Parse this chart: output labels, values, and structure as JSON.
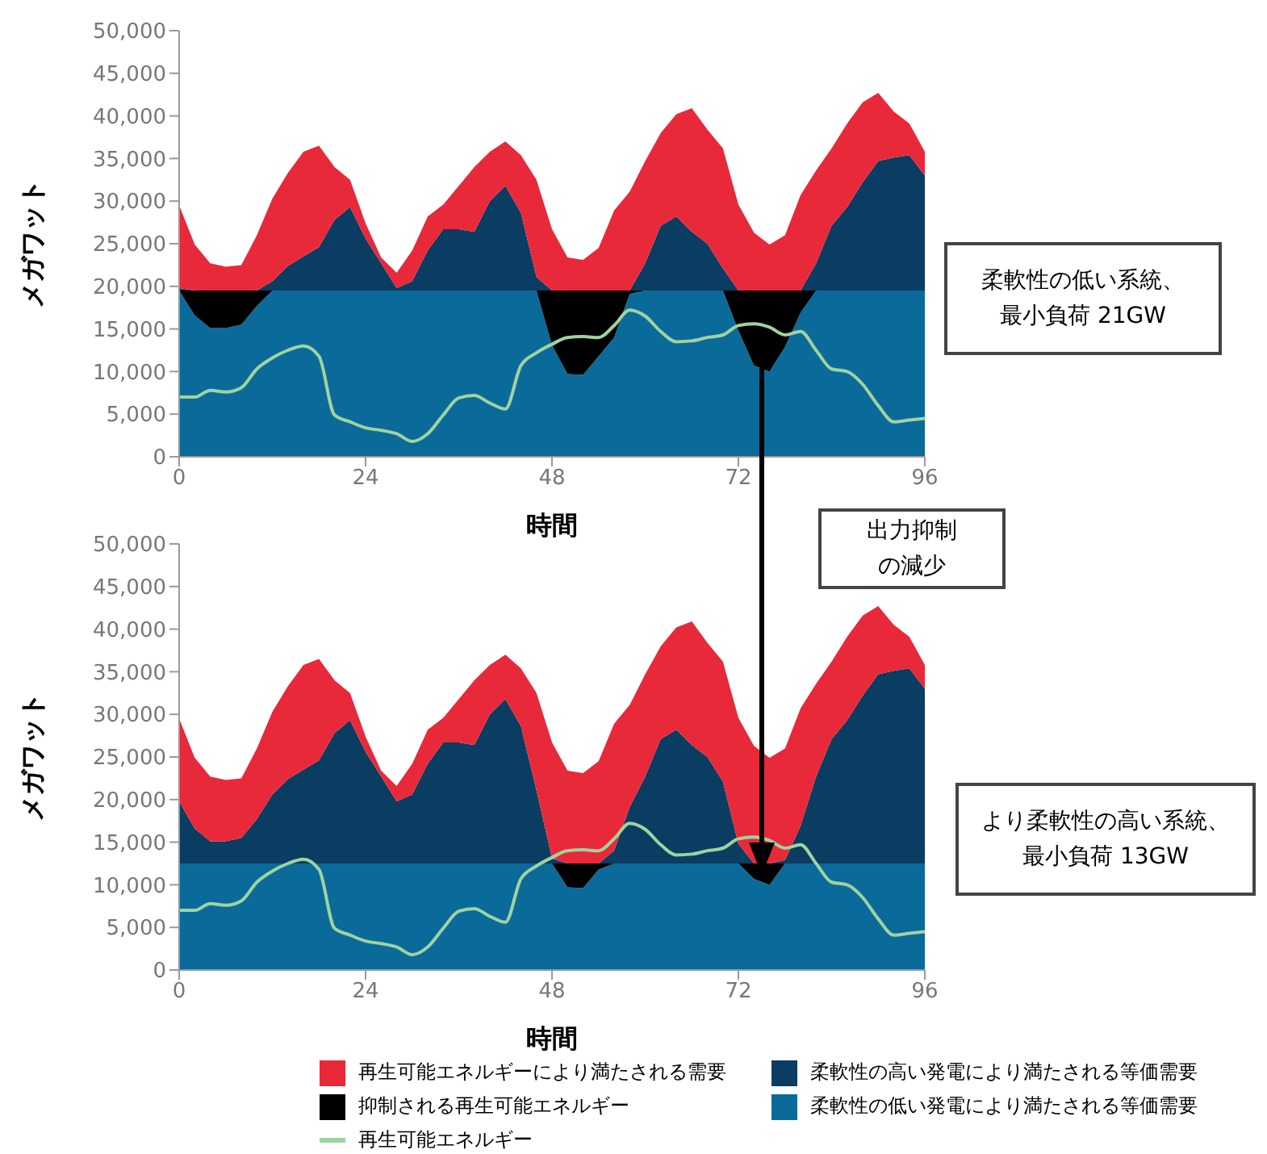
{
  "chart_data": [
    {
      "type": "area",
      "stacked": true,
      "xlabel": "時間",
      "ylabel": "メガワット",
      "x": [
        0,
        2,
        4,
        6,
        8,
        10,
        12,
        14,
        16,
        18,
        20,
        22,
        24,
        26,
        28,
        30,
        32,
        34,
        36,
        38,
        40,
        42,
        44,
        46,
        48,
        50,
        52,
        54,
        56,
        58,
        60,
        62,
        64,
        66,
        68,
        70,
        72,
        74,
        76,
        78,
        80,
        82,
        84,
        86,
        88,
        90,
        92,
        94,
        96
      ],
      "xlim": [
        0,
        96
      ],
      "xticks": [
        0,
        24,
        48,
        72,
        96
      ],
      "ylim": [
        0,
        50000
      ],
      "yticks": [
        0,
        {
          "value": 5000,
          "label": "5,000"
        },
        {
          "value": 10000,
          "label": "10,000"
        },
        {
          "value": 15000,
          "label": "15,000"
        },
        {
          "value": 20000,
          "label": "20,000"
        },
        {
          "value": 25000,
          "label": "25,000"
        },
        {
          "value": 30000,
          "label": "30,000"
        },
        {
          "value": 35000,
          "label": "35,000"
        },
        {
          "value": 40000,
          "label": "40,000"
        },
        {
          "value": 45000,
          "label": "45,000"
        },
        {
          "value": 50000,
          "label": "50,000"
        }
      ],
      "annotations": [
        "柔軟性の低い系統、最小負荷 21GW",
        "出力抑制の減少"
      ],
      "series": [
        {
          "color": "#0a6a9a",
          "values": [
            19500,
            16600,
            15100,
            15100,
            15500,
            17700,
            19500,
            19500,
            19500,
            19500,
            19500,
            19500,
            19500,
            19500,
            19500,
            19500,
            19500,
            19500,
            19500,
            19500,
            19500,
            19500,
            19500,
            19500,
            13100,
            9700,
            9600,
            11800,
            14000,
            19100,
            19500,
            19500,
            19500,
            19500,
            19500,
            19500,
            14800,
            10700,
            10000,
            12900,
            16900,
            19500,
            19500,
            19500,
            19500,
            19500,
            19500,
            19500,
            19500
          ]
        },
        {
          "color": "#000000",
          "values": [
            0,
            2900,
            4400,
            4400,
            4000,
            1800,
            0,
            0,
            0,
            0,
            0,
            0,
            0,
            0,
            0,
            0,
            0,
            0,
            0,
            0,
            0,
            0,
            0,
            0,
            6400,
            9800,
            9900,
            7700,
            5500,
            400,
            0,
            0,
            0,
            0,
            0,
            0,
            4700,
            8800,
            9500,
            6600,
            2600,
            0,
            0,
            0,
            0,
            0,
            0,
            0,
            0
          ]
        },
        {
          "color": "#0b3c61",
          "values": [
            300,
            0,
            0,
            0,
            0,
            0,
            1100,
            2900,
            4000,
            5100,
            8300,
            9800,
            6100,
            3200,
            300,
            1100,
            4700,
            7200,
            7200,
            6900,
            10500,
            12300,
            9100,
            1600,
            0,
            0,
            0,
            0,
            0,
            0,
            3200,
            7600,
            8700,
            6900,
            5500,
            2600,
            0,
            0,
            0,
            0,
            0,
            3200,
            7600,
            9800,
            12700,
            15200,
            15600,
            15900,
            13500
          ]
        },
        {
          "color": "#e8293a",
          "values": [
            9700,
            5400,
            3200,
            2800,
            3000,
            6500,
            9700,
            10900,
            12300,
            11900,
            6200,
            3200,
            1800,
            700,
            1800,
            3600,
            4000,
            2900,
            5100,
            7600,
            5800,
            5200,
            6800,
            11400,
            7200,
            3900,
            3600,
            5000,
            9400,
            11600,
            12000,
            10900,
            12000,
            14500,
            13400,
            14100,
            10100,
            6800,
            5400,
            6500,
            11200,
            10900,
            9100,
            9800,
            9400,
            8000,
            5400,
            3700,
            2800
          ]
        },
        {
          "type": "line",
          "color": "#9fd3a0",
          "values": [
            7000,
            7000,
            7800,
            7600,
            8100,
            10300,
            11600,
            12500,
            13000,
            11800,
            4900,
            4100,
            3400,
            3100,
            2700,
            1800,
            2700,
            4900,
            6900,
            7200,
            6300,
            5600,
            10700,
            12200,
            13200,
            14000,
            14100,
            14000,
            15400,
            17200,
            16500,
            14700,
            13500,
            13600,
            14000,
            14300,
            15400,
            15600,
            15200,
            14300,
            14700,
            12500,
            10300,
            10000,
            8500,
            6000,
            4100,
            4300,
            4500
          ]
        }
      ]
    },
    {
      "type": "area",
      "stacked": true,
      "xlabel": "時間",
      "ylabel": "メガワット",
      "legend": "bottom",
      "x": [
        0,
        2,
        4,
        6,
        8,
        10,
        12,
        14,
        16,
        18,
        20,
        22,
        24,
        26,
        28,
        30,
        32,
        34,
        36,
        38,
        40,
        42,
        44,
        46,
        48,
        50,
        52,
        54,
        56,
        58,
        60,
        62,
        64,
        66,
        68,
        70,
        72,
        74,
        76,
        78,
        80,
        82,
        84,
        86,
        88,
        90,
        92,
        94,
        96
      ],
      "xlim": [
        0,
        96
      ],
      "xticks": [
        0,
        24,
        48,
        72,
        96
      ],
      "ylim": [
        0,
        50000
      ],
      "yticks": [
        0,
        {
          "value": 5000,
          "label": "5,000"
        },
        {
          "value": 10000,
          "label": "10,000"
        },
        {
          "value": 15000,
          "label": "15,000"
        },
        {
          "value": 20000,
          "label": "20,000"
        },
        {
          "value": 25000,
          "label": "25,000"
        },
        {
          "value": 30000,
          "label": "30,000"
        },
        {
          "value": 35000,
          "label": "35,000"
        },
        {
          "value": 40000,
          "label": "40,000"
        },
        {
          "value": 45000,
          "label": "45,000"
        },
        {
          "value": 50000,
          "label": "50,000"
        }
      ],
      "annotations": [
        "より柔軟性の高い系統、最小負荷 13GW"
      ],
      "series": [
        {
          "name": "柔軟性の低い発電により満たされる等価需要",
          "color": "#0a6a9a",
          "values": [
            12500,
            12500,
            12500,
            12500,
            12500,
            12500,
            12500,
            12500,
            12500,
            12500,
            12500,
            12500,
            12500,
            12500,
            12500,
            12500,
            12500,
            12500,
            12500,
            12500,
            12500,
            12500,
            12500,
            12500,
            12500,
            9700,
            9600,
            11800,
            12500,
            12500,
            12500,
            12500,
            12500,
            12500,
            12500,
            12500,
            12500,
            10700,
            10000,
            12500,
            12500,
            12500,
            12500,
            12500,
            12500,
            12500,
            12500,
            12500,
            12500
          ]
        },
        {
          "name": "抑制される再生可能エネルギー",
          "color": "#000000",
          "values": [
            0,
            0,
            0,
            0,
            0,
            0,
            0,
            0,
            0,
            0,
            0,
            0,
            0,
            0,
            0,
            0,
            0,
            0,
            0,
            0,
            0,
            0,
            0,
            0,
            0,
            2800,
            2900,
            700,
            0,
            0,
            0,
            0,
            0,
            0,
            0,
            0,
            0,
            1800,
            2500,
            0,
            0,
            0,
            0,
            0,
            0,
            0,
            0,
            0,
            0
          ]
        },
        {
          "name": "柔軟性の高い発電により満たされる等価需要",
          "color": "#0b3c61",
          "values": [
            7300,
            4100,
            2600,
            2600,
            3000,
            5200,
            8100,
            9900,
            11000,
            12100,
            15300,
            16800,
            13100,
            10200,
            7300,
            8100,
            11700,
            14200,
            14200,
            13900,
            17500,
            19300,
            16100,
            8600,
            600,
            0,
            0,
            0,
            1500,
            6600,
            10200,
            14600,
            15700,
            13900,
            12500,
            9600,
            2300,
            0,
            0,
            400,
            4400,
            10200,
            14600,
            16800,
            19700,
            22200,
            22600,
            22900,
            20500
          ]
        },
        {
          "name": "再生可能エネルギーにより満たされる需要",
          "color": "#e8293a",
          "values": [
            9700,
            8300,
            7600,
            7200,
            7000,
            8300,
            9700,
            10900,
            12300,
            11900,
            6200,
            3200,
            1800,
            700,
            1800,
            3600,
            4000,
            2900,
            5100,
            7600,
            5800,
            5200,
            6800,
            11400,
            13600,
            10900,
            10600,
            12000,
            14900,
            12000,
            12000,
            10900,
            12000,
            14500,
            13400,
            14100,
            14800,
            13800,
            12400,
            13100,
            13800,
            10900,
            9100,
            9800,
            9400,
            8000,
            5400,
            3700,
            2800
          ]
        },
        {
          "name": "再生可能エネルギー",
          "type": "line",
          "color": "#9fd3a0",
          "values": [
            7000,
            7000,
            7800,
            7600,
            8100,
            10300,
            11600,
            12500,
            13000,
            11800,
            4900,
            4100,
            3400,
            3100,
            2700,
            1800,
            2700,
            4900,
            6900,
            7200,
            6300,
            5600,
            10700,
            12200,
            13200,
            14000,
            14100,
            14000,
            15400,
            17200,
            16500,
            14700,
            13500,
            13600,
            14000,
            14300,
            15400,
            15600,
            15200,
            14300,
            14700,
            12500,
            10300,
            10000,
            8500,
            6000,
            4100,
            4300,
            4500
          ]
        }
      ]
    }
  ]
}
